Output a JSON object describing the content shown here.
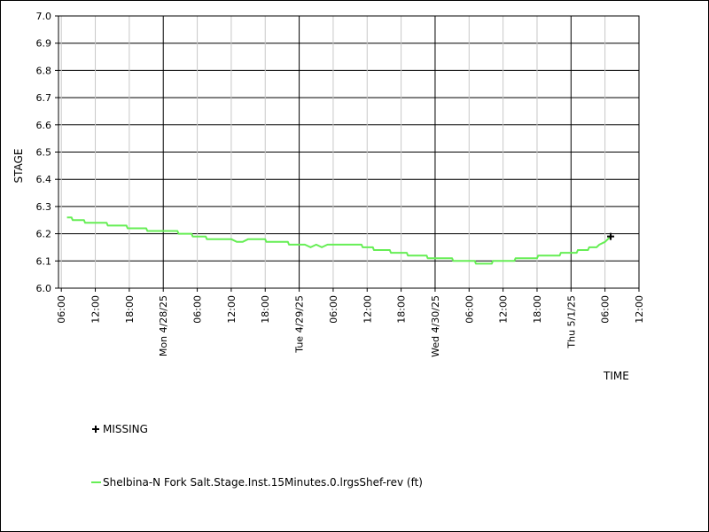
{
  "chart_data": {
    "type": "line",
    "ylabel": "STAGE",
    "xlabel": "TIME",
    "ylim": [
      6.0,
      7.0
    ],
    "y_ticks": [
      "6.0",
      "6.1",
      "6.2",
      "6.3",
      "6.4",
      "6.5",
      "6.6",
      "6.7",
      "6.8",
      "6.9",
      "7.0"
    ],
    "x_ticks": [
      {
        "label": "06:00",
        "hour": 6
      },
      {
        "label": "12:00",
        "hour": 12
      },
      {
        "label": "18:00",
        "hour": 18
      },
      {
        "label": "Mon 4/28/25",
        "hour": 24,
        "major": true
      },
      {
        "label": "06:00",
        "hour": 30
      },
      {
        "label": "12:00",
        "hour": 36
      },
      {
        "label": "18:00",
        "hour": 42
      },
      {
        "label": "Tue 4/29/25",
        "hour": 48,
        "major": true
      },
      {
        "label": "06:00",
        "hour": 54
      },
      {
        "label": "12:00",
        "hour": 60
      },
      {
        "label": "18:00",
        "hour": 66
      },
      {
        "label": "Wed 4/30/25",
        "hour": 72,
        "major": true
      },
      {
        "label": "06:00",
        "hour": 78
      },
      {
        "label": "12:00",
        "hour": 84
      },
      {
        "label": "18:00",
        "hour": 90
      },
      {
        "label": "Thu 5/1/25",
        "hour": 96,
        "major": true
      },
      {
        "label": "06:00",
        "hour": 102
      },
      {
        "label": "12:00",
        "hour": 108
      }
    ],
    "x_hour_range": [
      5.5,
      108
    ],
    "grid": true,
    "series": [
      {
        "name": "Shelbina-N Fork Salt.Stage.Inst.15Minutes.0.lrgsShef-rev (ft)",
        "color": "#66ee55",
        "points": [
          [
            7.0,
            6.26
          ],
          [
            7.8,
            6.26
          ],
          [
            8.0,
            6.25
          ],
          [
            10.0,
            6.25
          ],
          [
            10.2,
            6.24
          ],
          [
            14.0,
            6.24
          ],
          [
            14.2,
            6.23
          ],
          [
            17.5,
            6.23
          ],
          [
            17.7,
            6.22
          ],
          [
            21.0,
            6.22
          ],
          [
            21.2,
            6.21
          ],
          [
            26.5,
            6.21
          ],
          [
            26.7,
            6.2
          ],
          [
            29.0,
            6.2
          ],
          [
            29.2,
            6.19
          ],
          [
            31.5,
            6.19
          ],
          [
            31.7,
            6.18
          ],
          [
            35.5,
            6.18
          ],
          [
            36.0,
            6.18
          ],
          [
            37.0,
            6.17
          ],
          [
            38.0,
            6.17
          ],
          [
            39.0,
            6.18
          ],
          [
            42.0,
            6.18
          ],
          [
            42.2,
            6.17
          ],
          [
            46.0,
            6.17
          ],
          [
            46.2,
            6.16
          ],
          [
            49.0,
            6.16
          ],
          [
            50.0,
            6.15
          ],
          [
            51.0,
            6.16
          ],
          [
            52.0,
            6.15
          ],
          [
            53.0,
            6.16
          ],
          [
            59.0,
            6.16
          ],
          [
            59.2,
            6.15
          ],
          [
            61.0,
            6.15
          ],
          [
            61.2,
            6.14
          ],
          [
            64.0,
            6.14
          ],
          [
            64.2,
            6.13
          ],
          [
            67.0,
            6.13
          ],
          [
            67.2,
            6.12
          ],
          [
            70.5,
            6.12
          ],
          [
            70.7,
            6.11
          ],
          [
            75.0,
            6.11
          ],
          [
            75.2,
            6.1
          ],
          [
            79.0,
            6.1
          ],
          [
            79.2,
            6.09
          ],
          [
            82.0,
            6.09
          ],
          [
            82.2,
            6.1
          ],
          [
            85.0,
            6.1
          ],
          [
            86.0,
            6.1
          ],
          [
            86.2,
            6.11
          ],
          [
            90.0,
            6.11
          ],
          [
            90.2,
            6.12
          ],
          [
            94.0,
            6.12
          ],
          [
            94.2,
            6.13
          ],
          [
            97.0,
            6.13
          ],
          [
            97.2,
            6.14
          ],
          [
            99.0,
            6.14
          ],
          [
            99.2,
            6.15
          ],
          [
            100.5,
            6.15
          ],
          [
            101.0,
            6.16
          ],
          [
            102.0,
            6.17
          ],
          [
            103.0,
            6.19
          ]
        ]
      }
    ],
    "missing_markers": [
      [
        103.0,
        6.19
      ]
    ],
    "legend": [
      {
        "symbol": "plus",
        "label": "MISSING"
      },
      {
        "symbol": "line",
        "label": "Shelbina-N Fork Salt.Stage.Inst.15Minutes.0.lrgsShef-rev (ft)"
      }
    ]
  }
}
